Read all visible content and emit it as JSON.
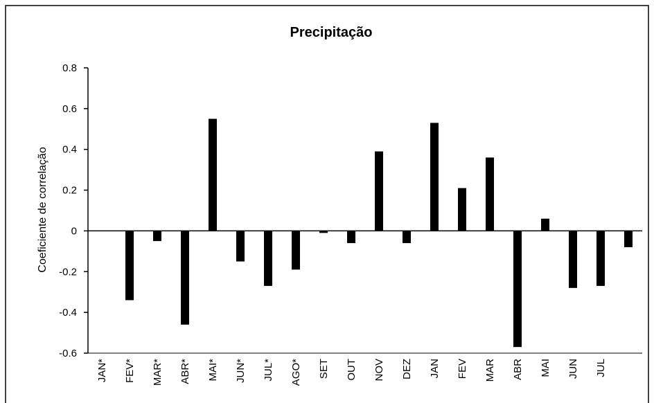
{
  "chart_data": {
    "type": "bar",
    "title": "Precipitação",
    "y_label": "Coeficiente de correlação",
    "categories": [
      "JAN*",
      "FEV*",
      "MAR*",
      "ABR*",
      "MAI*",
      "JUN*",
      "JUL*",
      "AGO*",
      "SET",
      "OUT",
      "NOV",
      "DEZ",
      "JAN",
      "FEV",
      "MAR",
      "ABR",
      "MAI",
      "JUN",
      "JUL",
      null
    ],
    "values": [
      0,
      -0.34,
      -0.05,
      -0.46,
      0.55,
      -0.15,
      -0.27,
      -0.19,
      -0.01,
      -0.06,
      0.39,
      -0.06,
      0.53,
      0.21,
      0.36,
      -0.57,
      0.06,
      -0.28,
      -0.27,
      -0.08
    ],
    "color": "#000000",
    "ylim": [
      -0.6,
      0.8
    ],
    "yticks": [
      -0.6,
      -0.4,
      -0.2,
      0,
      0.2,
      0.4,
      0.6,
      0.8
    ]
  }
}
